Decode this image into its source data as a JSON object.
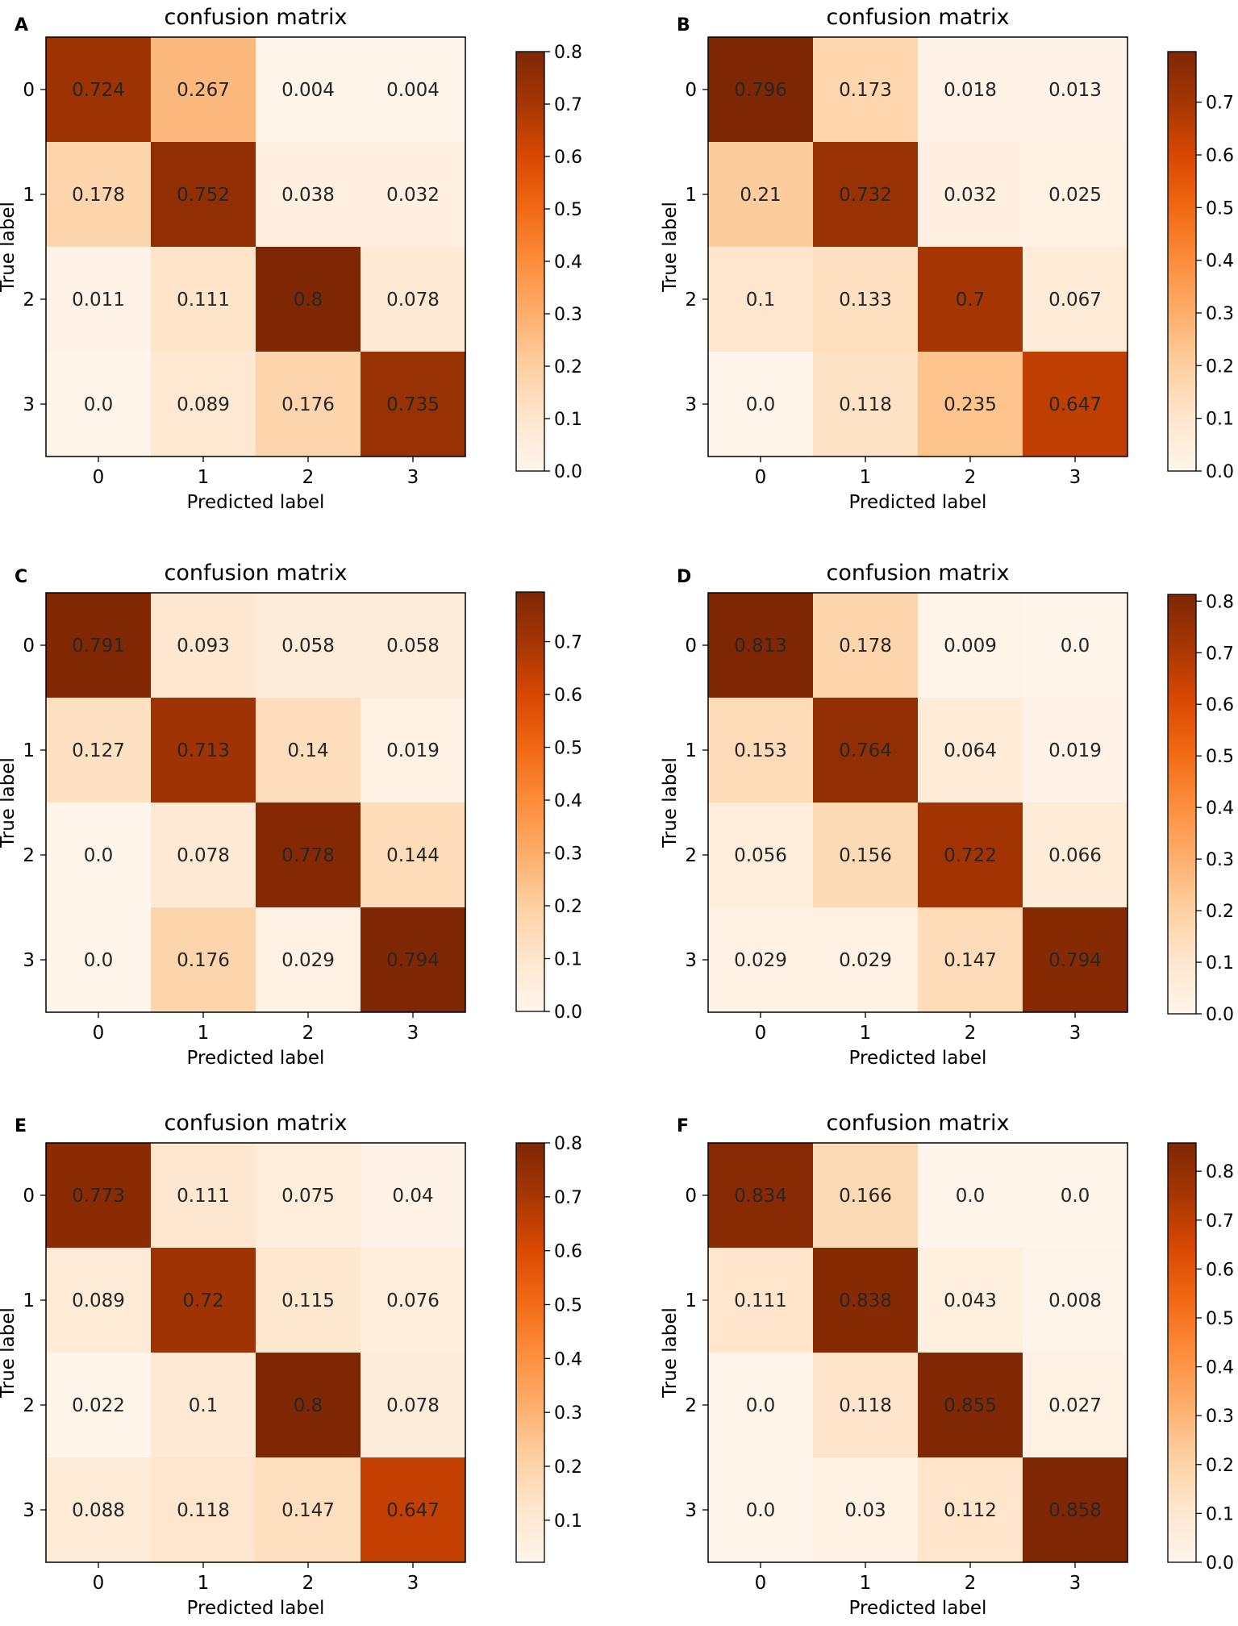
{
  "figure": {
    "colormap": "Oranges",
    "colors": {
      "light": "#fff5eb",
      "mid": "#fd8d3c",
      "dark": "#7f2704",
      "text": "#262626"
    }
  },
  "chart_data": [
    {
      "panel": "A",
      "type": "heatmap",
      "title": "confusion matrix",
      "xlabel": "Predicted label",
      "ylabel": "True label",
      "x_ticks": [
        "0",
        "1",
        "2",
        "3"
      ],
      "y_ticks": [
        "0",
        "1",
        "2",
        "3"
      ],
      "values": [
        [
          0.724,
          0.267,
          0.004,
          0.004
        ],
        [
          0.178,
          0.752,
          0.038,
          0.032
        ],
        [
          0.011,
          0.111,
          0.8,
          0.078
        ],
        [
          0.0,
          0.089,
          0.176,
          0.735
        ]
      ],
      "labels": [
        [
          "0.724",
          "0.267",
          "0.004",
          "0.004"
        ],
        [
          "0.178",
          "0.752",
          "0.038",
          "0.032"
        ],
        [
          "0.011",
          "0.111",
          "0.8",
          "0.078"
        ],
        [
          "0.0",
          "0.089",
          "0.176",
          "0.735"
        ]
      ],
      "color_range": [
        0.0,
        0.8
      ],
      "colorbar_ticks": [
        "0.0",
        "0.1",
        "0.2",
        "0.3",
        "0.4",
        "0.5",
        "0.6",
        "0.7",
        "0.8"
      ]
    },
    {
      "panel": "B",
      "type": "heatmap",
      "title": "confusion matrix",
      "xlabel": "Predicted label",
      "ylabel": "True label",
      "x_ticks": [
        "0",
        "1",
        "2",
        "3"
      ],
      "y_ticks": [
        "0",
        "1",
        "2",
        "3"
      ],
      "values": [
        [
          0.796,
          0.173,
          0.018,
          0.013
        ],
        [
          0.21,
          0.732,
          0.032,
          0.025
        ],
        [
          0.1,
          0.133,
          0.7,
          0.067
        ],
        [
          0.0,
          0.118,
          0.235,
          0.647
        ]
      ],
      "labels": [
        [
          "0.796",
          "0.173",
          "0.018",
          "0.013"
        ],
        [
          "0.21",
          "0.732",
          "0.032",
          "0.025"
        ],
        [
          "0.1",
          "0.133",
          "0.7",
          "0.067"
        ],
        [
          "0.0",
          "0.118",
          "0.235",
          "0.647"
        ]
      ],
      "color_range": [
        0.0,
        0.796
      ],
      "colorbar_ticks": [
        "0.0",
        "0.1",
        "0.2",
        "0.3",
        "0.4",
        "0.5",
        "0.6",
        "0.7"
      ]
    },
    {
      "panel": "C",
      "type": "heatmap",
      "title": "confusion matrix",
      "xlabel": "Predicted label",
      "ylabel": "True label",
      "x_ticks": [
        "0",
        "1",
        "2",
        "3"
      ],
      "y_ticks": [
        "0",
        "1",
        "2",
        "3"
      ],
      "values": [
        [
          0.791,
          0.093,
          0.058,
          0.058
        ],
        [
          0.127,
          0.713,
          0.14,
          0.019
        ],
        [
          0.0,
          0.078,
          0.778,
          0.144
        ],
        [
          0.0,
          0.176,
          0.029,
          0.794
        ]
      ],
      "labels": [
        [
          "0.791",
          "0.093",
          "0.058",
          "0.058"
        ],
        [
          "0.127",
          "0.713",
          "0.14",
          "0.019"
        ],
        [
          "0.0",
          "0.078",
          "0.778",
          "0.144"
        ],
        [
          "0.0",
          "0.176",
          "0.029",
          "0.794"
        ]
      ],
      "color_range": [
        0.0,
        0.794
      ],
      "colorbar_ticks": [
        "0.0",
        "0.1",
        "0.2",
        "0.3",
        "0.4",
        "0.5",
        "0.6",
        "0.7"
      ]
    },
    {
      "panel": "D",
      "type": "heatmap",
      "title": "confusion matrix",
      "xlabel": "Predicted label",
      "ylabel": "True label",
      "x_ticks": [
        "0",
        "1",
        "2",
        "3"
      ],
      "y_ticks": [
        "0",
        "1",
        "2",
        "3"
      ],
      "values": [
        [
          0.813,
          0.178,
          0.009,
          0.0
        ],
        [
          0.153,
          0.764,
          0.064,
          0.019
        ],
        [
          0.056,
          0.156,
          0.722,
          0.066
        ],
        [
          0.029,
          0.029,
          0.147,
          0.794
        ]
      ],
      "labels": [
        [
          "0.813",
          "0.178",
          "0.009",
          "0.0"
        ],
        [
          "0.153",
          "0.764",
          "0.064",
          "0.019"
        ],
        [
          "0.056",
          "0.156",
          "0.722",
          "0.066"
        ],
        [
          "0.029",
          "0.029",
          "0.147",
          "0.794"
        ]
      ],
      "color_range": [
        0.0,
        0.813
      ],
      "colorbar_ticks": [
        "0.0",
        "0.1",
        "0.2",
        "0.3",
        "0.4",
        "0.5",
        "0.6",
        "0.7",
        "0.8"
      ]
    },
    {
      "panel": "E",
      "type": "heatmap",
      "title": "confusion matrix",
      "xlabel": "Predicted label",
      "ylabel": "True label",
      "x_ticks": [
        "0",
        "1",
        "2",
        "3"
      ],
      "y_ticks": [
        "0",
        "1",
        "2",
        "3"
      ],
      "values": [
        [
          0.773,
          0.111,
          0.075,
          0.04
        ],
        [
          0.089,
          0.72,
          0.115,
          0.076
        ],
        [
          0.022,
          0.1,
          0.8,
          0.078
        ],
        [
          0.088,
          0.118,
          0.147,
          0.647
        ]
      ],
      "labels": [
        [
          "0.773",
          "0.111",
          "0.075",
          "0.04"
        ],
        [
          "0.089",
          "0.72",
          "0.115",
          "0.076"
        ],
        [
          "0.022",
          "0.1",
          "0.8",
          "0.078"
        ],
        [
          "0.088",
          "0.118",
          "0.147",
          "0.647"
        ]
      ],
      "color_range": [
        0.022,
        0.8
      ],
      "colorbar_ticks": [
        "0.1",
        "0.2",
        "0.3",
        "0.4",
        "0.5",
        "0.6",
        "0.7",
        "0.8"
      ]
    },
    {
      "panel": "F",
      "type": "heatmap",
      "title": "confusion matrix",
      "xlabel": "Predicted label",
      "ylabel": "True label",
      "x_ticks": [
        "0",
        "1",
        "2",
        "3"
      ],
      "y_ticks": [
        "0",
        "1",
        "2",
        "3"
      ],
      "values": [
        [
          0.834,
          0.166,
          0.0,
          0.0
        ],
        [
          0.111,
          0.838,
          0.043,
          0.008
        ],
        [
          0.0,
          0.118,
          0.855,
          0.027
        ],
        [
          0.0,
          0.03,
          0.112,
          0.858
        ]
      ],
      "labels": [
        [
          "0.834",
          "0.166",
          "0.0",
          "0.0"
        ],
        [
          "0.111",
          "0.838",
          "0.043",
          "0.008"
        ],
        [
          "0.0",
          "0.118",
          "0.855",
          "0.027"
        ],
        [
          "0.0",
          "0.03",
          "0.112",
          "0.858"
        ]
      ],
      "color_range": [
        0.0,
        0.858
      ],
      "colorbar_ticks": [
        "0.0",
        "0.1",
        "0.2",
        "0.3",
        "0.4",
        "0.5",
        "0.6",
        "0.7",
        "0.8"
      ]
    }
  ]
}
